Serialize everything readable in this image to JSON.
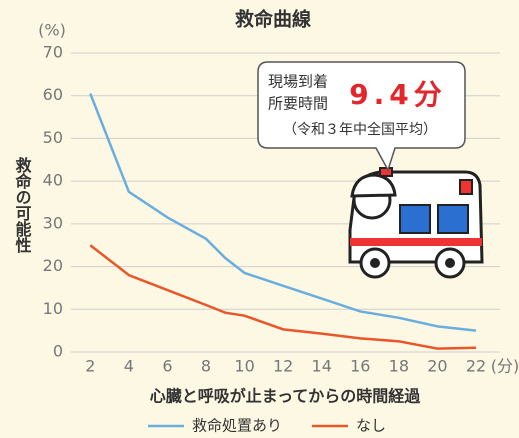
{
  "chart_data": {
    "type": "line",
    "title": "救命曲線",
    "y_unit": "(%)",
    "y_label": "救命の可能性",
    "x_unit": "(分)",
    "x_label": "心臓と呼吸が止まってからの時間経過",
    "x": [
      2,
      4,
      6,
      8,
      9,
      10,
      12,
      14,
      16,
      18,
      20,
      22
    ],
    "series": [
      {
        "name": "救命処置あり",
        "color": "#6aaede",
        "values": [
          60.5,
          37.5,
          31.5,
          26.5,
          22,
          18.5,
          15.5,
          12.5,
          9.5,
          8,
          6,
          5
        ]
      },
      {
        "name": "なし",
        "color": "#e8562a",
        "values": [
          25,
          18,
          14.5,
          11,
          9.2,
          8.5,
          5.3,
          4.3,
          3.2,
          2.5,
          0.8,
          1
        ]
      }
    ],
    "xlim": [
      1,
      22
    ],
    "xticks": [
      2,
      4,
      6,
      8,
      10,
      12,
      14,
      16,
      18,
      20,
      22
    ],
    "ylim": [
      0,
      70
    ],
    "yticks": [
      0,
      10,
      20,
      30,
      40,
      50,
      60,
      70
    ],
    "grid": true,
    "annotation": {
      "line1": "現場到着",
      "line2": "所要時間",
      "highlight": "9.4分",
      "note": "（令和３年中全国平均）"
    }
  }
}
